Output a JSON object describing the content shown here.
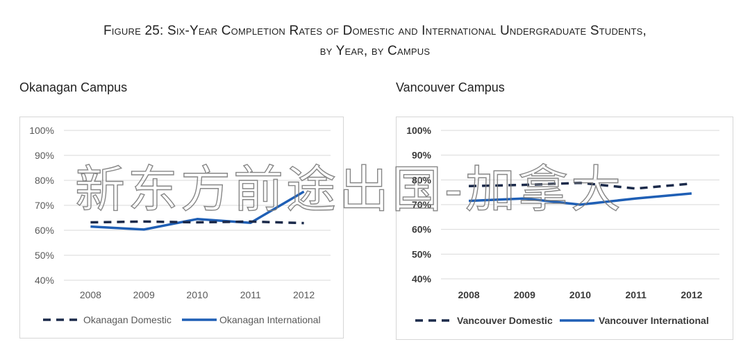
{
  "figure": {
    "title_line1": "Figure 25: Six-Year Completion Rates of Domestic and International Undergraduate Students,",
    "title_line2": "by Year, by Campus"
  },
  "watermark": {
    "text": "新东方前途出国-加拿大"
  },
  "colors": {
    "domestic": "#1b2a4a",
    "international": "#1f5fb5",
    "grid": "#d9d9d9"
  },
  "chart_data": [
    {
      "type": "line",
      "title": "Okanagan Campus",
      "x": [
        "2008",
        "2009",
        "2010",
        "2011",
        "2012"
      ],
      "ylim": [
        40,
        100
      ],
      "yticks": [
        "100%",
        "90%",
        "80%",
        "70%",
        "60%",
        "50%",
        "40%"
      ],
      "grid": true,
      "legend": "bottom",
      "series": [
        {
          "name": "Okanagan Domestic",
          "style": "dashed",
          "values": [
            63.2,
            63.5,
            63.2,
            63.5,
            62.9
          ]
        },
        {
          "name": "Okanagan International",
          "style": "solid",
          "values": [
            61.5,
            60.3,
            64.5,
            63.0,
            75.5
          ]
        }
      ]
    },
    {
      "type": "line",
      "title": "Vancouver Campus",
      "x": [
        "2008",
        "2009",
        "2010",
        "2011",
        "2012"
      ],
      "ylim": [
        40,
        100
      ],
      "yticks": [
        "100%",
        "90%",
        "80%",
        "70%",
        "60%",
        "50%",
        "40%"
      ],
      "grid": true,
      "legend": "bottom",
      "series": [
        {
          "name": "Vancouver Domestic",
          "style": "dashed",
          "values": [
            77.5,
            78.0,
            78.8,
            76.5,
            78.5
          ]
        },
        {
          "name": "Vancouver International",
          "style": "solid",
          "values": [
            71.5,
            72.5,
            70.0,
            72.5,
            74.5
          ]
        }
      ]
    }
  ]
}
